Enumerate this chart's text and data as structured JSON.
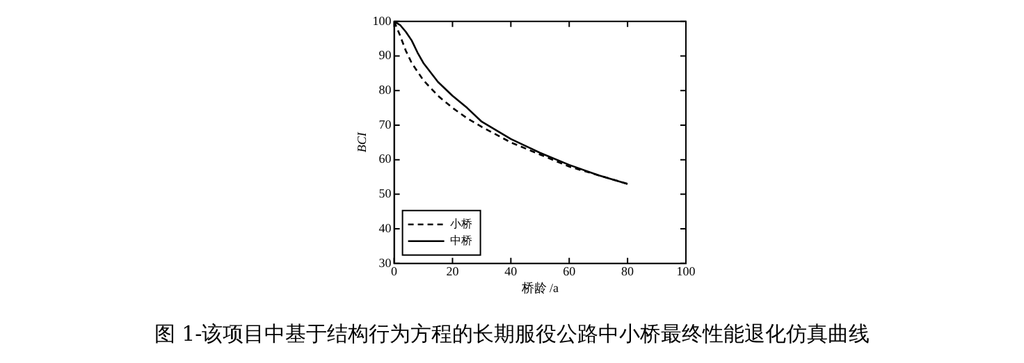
{
  "chart_data": {
    "type": "line",
    "xlabel": "桥龄 /a",
    "ylabel": "BCI",
    "xlim": [
      0,
      100
    ],
    "xticks": [
      0,
      20,
      40,
      60,
      80,
      100
    ],
    "ylim": [
      30,
      100
    ],
    "yticks": [
      30,
      40,
      50,
      60,
      70,
      80,
      90,
      100
    ],
    "grid": false,
    "legend": "bottom left",
    "marker": "none",
    "annotations": [
      "图 1-该项目中基于结构行为方程的长期服役公路中小桥最终性能退化仿真曲线"
    ],
    "series": [
      {
        "name": "小桥",
        "color": "#000000",
        "line_style": "dashed",
        "x": [
          0,
          2,
          4,
          6,
          10,
          15,
          20,
          25,
          30,
          40,
          50,
          60,
          70,
          80
        ],
        "values": [
          100,
          96,
          91.5,
          88,
          83,
          78.5,
          75,
          72,
          69.5,
          65,
          61.5,
          58,
          55.5,
          53
        ]
      },
      {
        "name": "中桥",
        "color": "#000000",
        "line_style": "solid",
        "x": [
          0,
          2,
          4,
          6,
          8,
          10,
          15,
          20,
          25,
          30,
          40,
          50,
          60,
          70,
          80
        ],
        "values": [
          100,
          99,
          97,
          94.5,
          91,
          88,
          82.5,
          78.5,
          75,
          71,
          66,
          62,
          58.5,
          55.5,
          53
        ]
      }
    ]
  }
}
